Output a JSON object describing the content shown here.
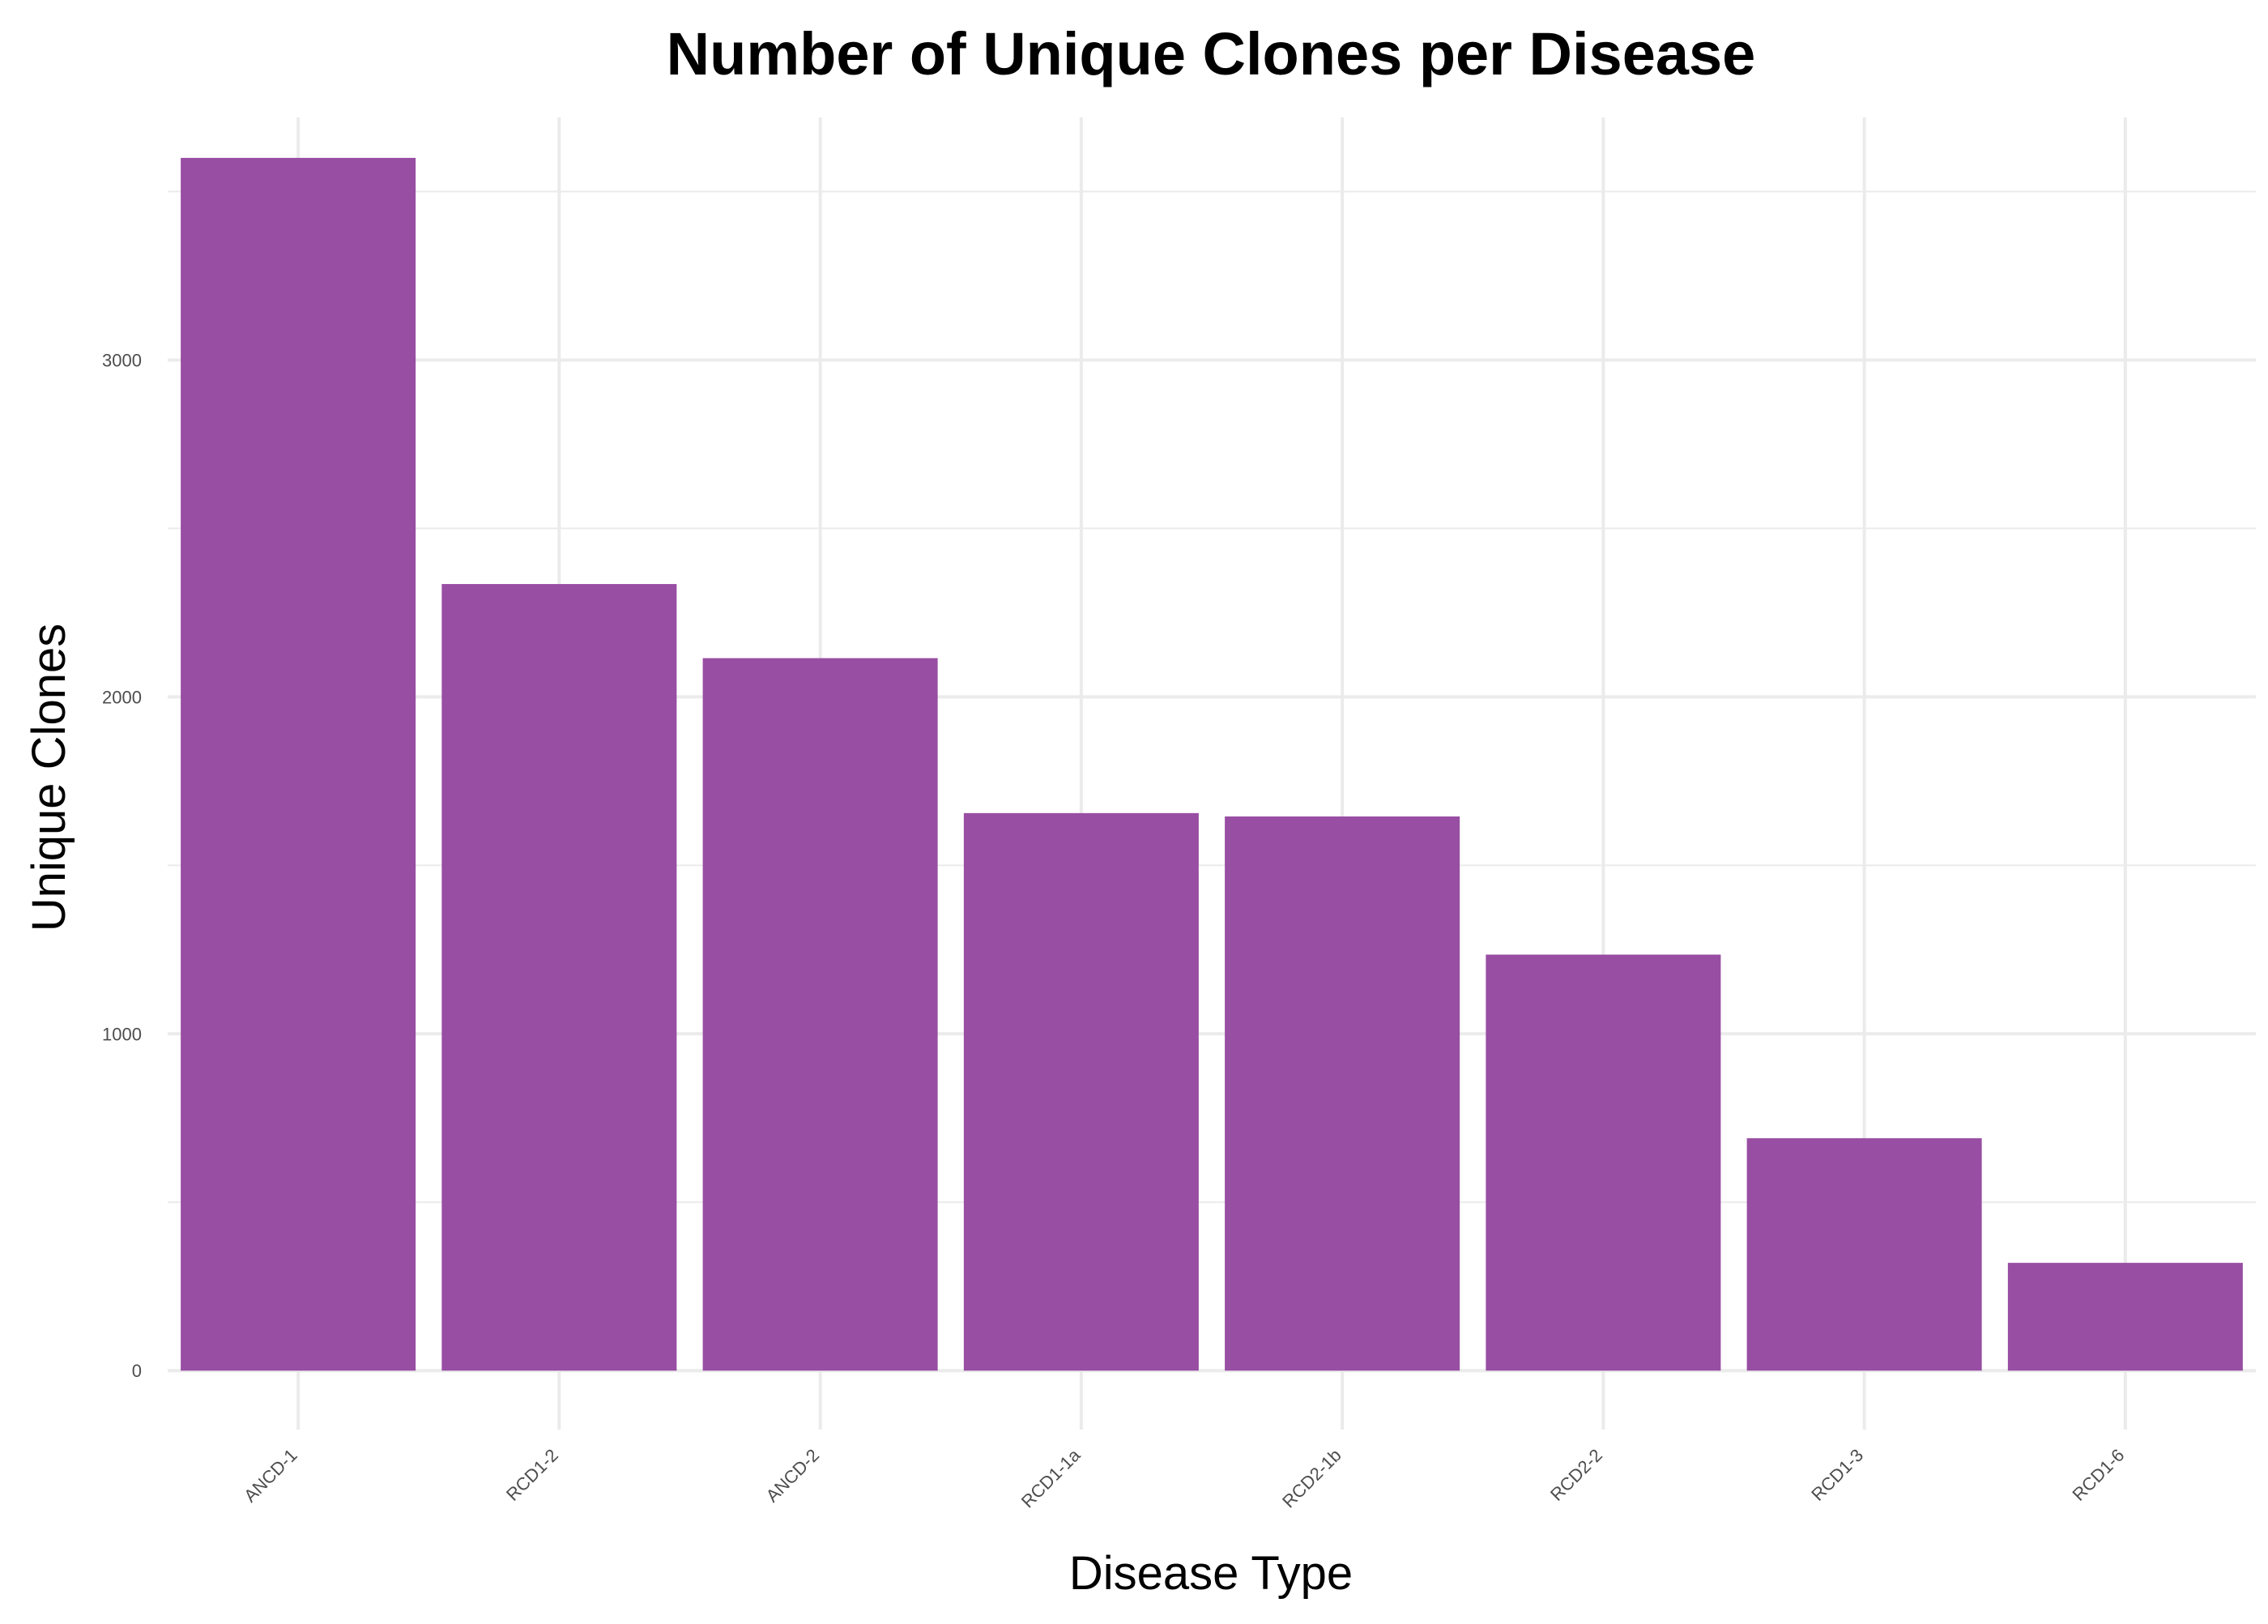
{
  "chart_data": {
    "type": "bar",
    "title": "Number of Unique Clones per Disease",
    "xlabel": "Disease Type",
    "ylabel": "Unique Clones",
    "categories": [
      "ANCD-1",
      "RCD1-2",
      "ANCD-2",
      "RCD1-1a",
      "RCD2-1b",
      "RCD2-2",
      "RCD1-3",
      "RCD1-6"
    ],
    "values": [
      3600,
      2335,
      2115,
      1655,
      1645,
      1235,
      690,
      320
    ],
    "ylim": [
      -175,
      3720
    ],
    "yticks": [
      0,
      1000,
      2000,
      3000
    ],
    "ytick_labels": [
      "0",
      "1000",
      "2000",
      "3000"
    ],
    "grid": true,
    "bar_color": "#984EA3",
    "legend": "none"
  }
}
